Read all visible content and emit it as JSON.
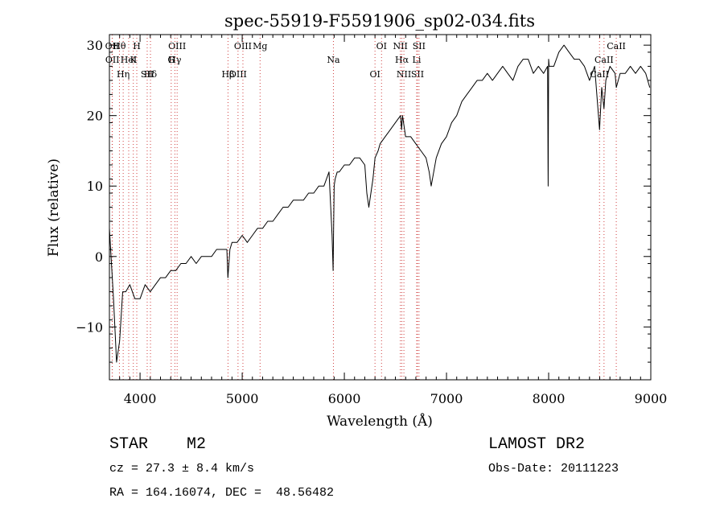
{
  "chart_data": {
    "type": "line",
    "title": "spec-55919-F5591906_sp02-034.fits",
    "xlabel": "Wavelength (Å)",
    "ylabel": "Flux (relative)",
    "xlim": [
      3700,
      9000
    ],
    "ylim": [
      -17.5,
      31.5
    ],
    "xticks": [
      4000,
      5000,
      6000,
      7000,
      8000,
      9000
    ],
    "yticks": [
      -10,
      0,
      10,
      20,
      30
    ],
    "ytick_labels": [
      "−10",
      "0",
      "10",
      "20",
      "30"
    ],
    "grid": false,
    "series": [
      {
        "color": "#000000",
        "x": [
          3700,
          3740,
          3770,
          3800,
          3830,
          3860,
          3900,
          3950,
          4000,
          4050,
          4100,
          4150,
          4200,
          4250,
          4300,
          4350,
          4400,
          4450,
          4500,
          4550,
          4600,
          4650,
          4700,
          4750,
          4800,
          4850,
          4860,
          4880,
          4900,
          4950,
          5000,
          5050,
          5100,
          5150,
          5200,
          5250,
          5300,
          5350,
          5400,
          5450,
          5500,
          5550,
          5600,
          5650,
          5700,
          5750,
          5800,
          5850,
          5880,
          5890,
          5895,
          5900,
          5910,
          5930,
          5950,
          6000,
          6050,
          6100,
          6150,
          6200,
          6220,
          6240,
          6280,
          6300,
          6330,
          6350,
          6400,
          6450,
          6500,
          6550,
          6560,
          6570,
          6600,
          6650,
          6700,
          6750,
          6800,
          6830,
          6850,
          6900,
          6950,
          7000,
          7050,
          7100,
          7150,
          7200,
          7250,
          7300,
          7350,
          7400,
          7450,
          7500,
          7550,
          7600,
          7650,
          7700,
          7750,
          7800,
          7850,
          7900,
          7950,
          7990,
          7995,
          8000,
          8005,
          8050,
          8100,
          8150,
          8200,
          8250,
          8300,
          8350,
          8400,
          8450,
          8498,
          8520,
          8542,
          8560,
          8600,
          8650,
          8662,
          8700,
          8750,
          8800,
          8850,
          8900,
          8950,
          8990
        ],
        "y": [
          4,
          -6,
          -15,
          -12,
          -5,
          -5,
          -4,
          -6,
          -6,
          -4,
          -5,
          -4,
          -3,
          -3,
          -2,
          -2,
          -1,
          -1,
          0,
          -1,
          0,
          0,
          0,
          1,
          1,
          1,
          -3,
          1,
          2,
          2,
          3,
          2,
          3,
          4,
          4,
          5,
          5,
          6,
          7,
          7,
          8,
          8,
          8,
          9,
          9,
          10,
          10,
          12,
          3,
          -2,
          4,
          10,
          11,
          12,
          12,
          13,
          13,
          14,
          14,
          13,
          9,
          7,
          11,
          14,
          15,
          16,
          17,
          18,
          19,
          20,
          18,
          20,
          17,
          17,
          16,
          15,
          14,
          12,
          10,
          14,
          16,
          17,
          19,
          20,
          22,
          23,
          24,
          25,
          25,
          26,
          25,
          26,
          27,
          26,
          25,
          27,
          28,
          28,
          26,
          27,
          26,
          27,
          10,
          28,
          27,
          27,
          29,
          30,
          29,
          28,
          28,
          27,
          25,
          27,
          18,
          24,
          21,
          25,
          27,
          26,
          24,
          26,
          26,
          27,
          26,
          27,
          26,
          24
        ]
      }
    ],
    "line_markers": [
      {
        "label": "Hθ",
        "wavelength": 3798
      },
      {
        "label": "K",
        "wavelength": 3934
      },
      {
        "label": "Hδ",
        "wavelength": 4102
      },
      {
        "label": "OII",
        "wavelength": 3727
      },
      {
        "label": "HeI",
        "wavelength": 3889
      },
      {
        "label": "SII",
        "wavelength": 4070
      },
      {
        "label": "OIII",
        "wavelength": 4363
      },
      {
        "label": "Hγ",
        "wavelength": 4341
      },
      {
        "label": "OIII",
        "wavelength": 4959
      },
      {
        "label": "OIII",
        "wavelength": 5007
      },
      {
        "label": "OII",
        "wavelength": 3729
      },
      {
        "label": "Hη",
        "wavelength": 3835
      },
      {
        "label": "H",
        "wavelength": 3968
      },
      {
        "label": "G",
        "wavelength": 4305
      },
      {
        "label": "Hβ",
        "wavelength": 4861
      },
      {
        "label": "Mg",
        "wavelength": 5175
      },
      {
        "label": "Na",
        "wavelength": 5893
      },
      {
        "label": "OI",
        "wavelength": 6300
      },
      {
        "label": "OI",
        "wavelength": 6364
      },
      {
        "label": "Hα",
        "wavelength": 6563
      },
      {
        "label": "SII",
        "wavelength": 6716
      },
      {
        "label": "NII",
        "wavelength": 6548
      },
      {
        "label": "Li",
        "wavelength": 6708
      },
      {
        "label": "NII",
        "wavelength": 6583
      },
      {
        "label": "SII",
        "wavelength": 6731
      },
      {
        "label": "CaII",
        "wavelength": 8542
      },
      {
        "label": "CaII",
        "wavelength": 8498
      },
      {
        "label": "CaII",
        "wavelength": 8662
      }
    ]
  },
  "footer": {
    "classification": "STAR    M2",
    "survey": "LAMOST DR2",
    "redshift": "cz = 27.3 ± 8.4 km/s",
    "obs_date": "Obs-Date: 20111223",
    "coords": "RA = 164.16074, DEC =  48.56482"
  }
}
